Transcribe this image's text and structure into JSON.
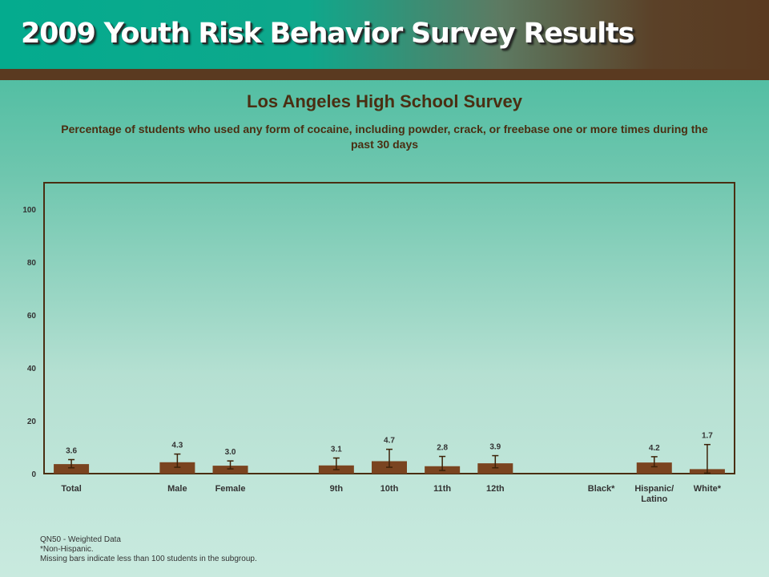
{
  "header": {
    "title": "2009 Youth Risk Behavior Survey Results"
  },
  "survey_title": "Los Angeles High School Survey",
  "colors": {
    "bar": "#7a4420",
    "text": "#4a2e12",
    "error_bar": "#3d2208"
  },
  "chart_data": {
    "type": "bar",
    "title": "Percentage of students who used any form of cocaine, including powder, crack, or freebase one or more times during the past 30 days",
    "xlabel": "",
    "ylabel": "",
    "ylim": [
      0,
      110
    ],
    "yticks": [
      0,
      20,
      40,
      60,
      80,
      100
    ],
    "grid": false,
    "categories": [
      {
        "label": "Total",
        "value": 3.6,
        "value_label": "3.6",
        "ci": [
          2.2,
          5.3
        ]
      },
      {
        "label": "",
        "value": null,
        "value_label": "",
        "ci": null
      },
      {
        "label": "Male",
        "value": 4.3,
        "value_label": "4.3",
        "ci": [
          2.4,
          7.4
        ]
      },
      {
        "label": "Female",
        "value": 3.0,
        "value_label": "3.0",
        "ci": [
          1.8,
          4.8
        ]
      },
      {
        "label": "",
        "value": null,
        "value_label": "",
        "ci": null
      },
      {
        "label": "9th",
        "value": 3.1,
        "value_label": "3.1",
        "ci": [
          1.5,
          5.9
        ]
      },
      {
        "label": "10th",
        "value": 4.7,
        "value_label": "4.7",
        "ci": [
          2.4,
          9.2
        ]
      },
      {
        "label": "11th",
        "value": 2.8,
        "value_label": "2.8",
        "ci": [
          1.2,
          6.5
        ]
      },
      {
        "label": "12th",
        "value": 3.9,
        "value_label": "3.9",
        "ci": [
          2.2,
          6.8
        ]
      },
      {
        "label": "",
        "value": null,
        "value_label": "",
        "ci": null
      },
      {
        "label": "Black*",
        "value": null,
        "value_label": "",
        "ci": null
      },
      {
        "label": "Hispanic/\nLatino",
        "value": 4.2,
        "value_label": "4.2",
        "ci": [
          2.6,
          6.4
        ]
      },
      {
        "label": "White*",
        "value": 1.7,
        "value_label": "1.7",
        "ci": [
          0.2,
          11.0
        ]
      }
    ]
  },
  "footnotes": [
    "QN50 - Weighted Data",
    "*Non-Hispanic.",
    "Missing bars indicate less than 100 students in the subgroup."
  ]
}
